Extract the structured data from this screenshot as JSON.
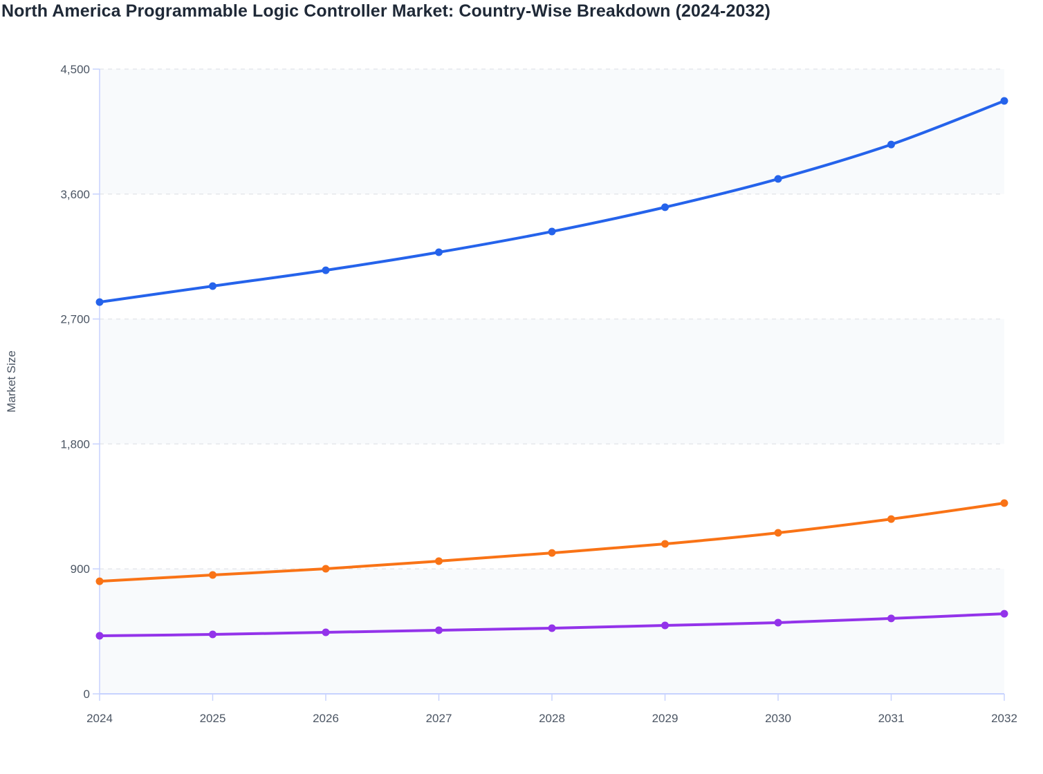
{
  "chart_data": {
    "type": "line",
    "title": "North America Programmable Logic Controller Market: Country-Wise Breakdown (2024-2032)",
    "xlabel": "",
    "ylabel": "Market Size",
    "x": [
      "2024",
      "2025",
      "2026",
      "2027",
      "2028",
      "2029",
      "2030",
      "2031",
      "2032"
    ],
    "ylim": [
      0,
      4500
    ],
    "yticks": [
      0,
      900,
      1800,
      2700,
      3600,
      4500
    ],
    "ytick_labels": [
      "0",
      "900",
      "1,800",
      "2,700",
      "3,600",
      "4,500"
    ],
    "grid": true,
    "legend": "none",
    "series": [
      {
        "color": "#2563eb",
        "values": [
          2822,
          2937,
          3051,
          3181,
          3330,
          3505,
          3709,
          3957,
          4271
        ]
      },
      {
        "color": "#f97316",
        "values": [
          811,
          856,
          901,
          956,
          1015,
          1080,
          1160,
          1259,
          1374
        ]
      },
      {
        "color": "#9333ea",
        "values": [
          418,
          428,
          443,
          458,
          473,
          493,
          513,
          543,
          577
        ]
      }
    ]
  }
}
